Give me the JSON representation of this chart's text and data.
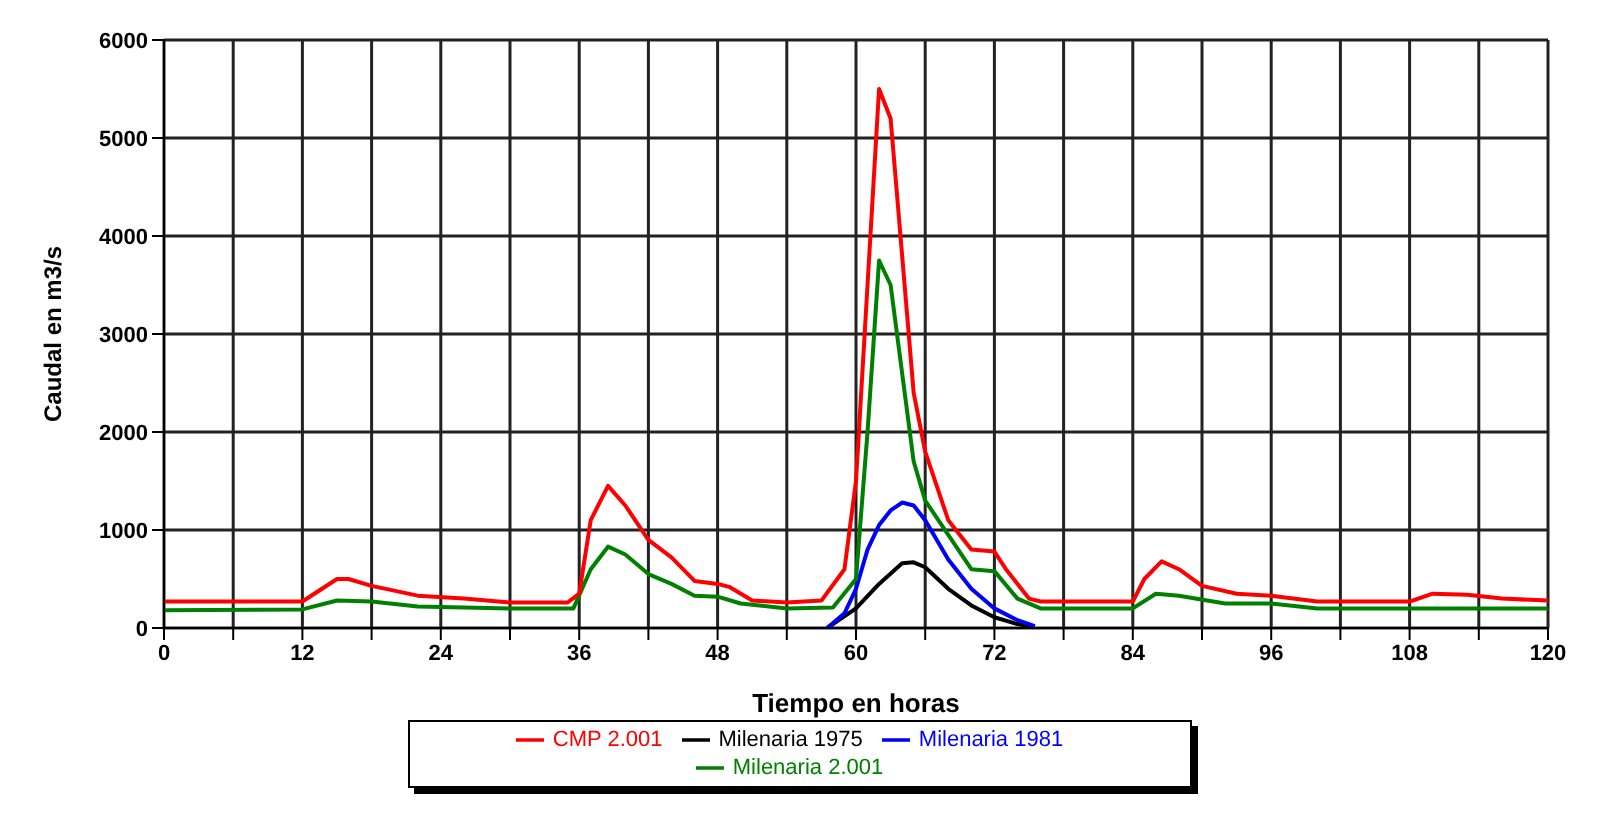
{
  "chart_data": {
    "type": "line",
    "xlabel": "Tiempo en horas",
    "ylabel": "Caudal en m3/s",
    "xlim": [
      0,
      120
    ],
    "xticks": [
      0,
      {
        "value": 6,
        "label": null
      },
      12,
      {
        "value": 18,
        "label": null
      },
      24,
      {
        "value": 30,
        "label": null
      },
      36,
      {
        "value": 42,
        "label": null
      },
      48,
      {
        "value": 54,
        "label": null
      },
      60,
      {
        "value": 66,
        "label": null
      },
      72,
      {
        "value": 78,
        "label": null
      },
      84,
      {
        "value": 90,
        "label": null
      },
      96,
      {
        "value": 102,
        "label": null
      },
      108,
      {
        "value": 114,
        "label": null
      },
      120
    ],
    "ylim": [
      0,
      6000
    ],
    "yticks": [
      0,
      1000,
      2000,
      3000,
      4000,
      5000,
      6000
    ],
    "grid": true,
    "legend": "bottom",
    "marker": "none",
    "line_style": "solid",
    "series": [
      {
        "name": "Milenaria 1975",
        "color": "#000000",
        "x": [
          57.5,
          60,
          62,
          64,
          65,
          66,
          68,
          70,
          72,
          74,
          75.5
        ],
        "values": [
          0,
          200,
          450,
          660,
          670,
          620,
          400,
          230,
          110,
          40,
          10
        ]
      },
      {
        "name": "Milenaria 1981",
        "color": "#0000ff",
        "x": [
          57.5,
          59,
          60,
          61,
          62,
          63,
          64,
          65,
          66,
          68,
          70,
          72,
          74,
          75.5
        ],
        "values": [
          0,
          150,
          400,
          800,
          1050,
          1200,
          1280,
          1250,
          1100,
          700,
          400,
          200,
          80,
          20
        ]
      },
      {
        "name": "Milenaria 2.001",
        "color": "#008000",
        "x": [
          0,
          12,
          15,
          18,
          22,
          30,
          35.5,
          37,
          38.5,
          40,
          42,
          44,
          46,
          48,
          50,
          54,
          58,
          60,
          61,
          62,
          63,
          64,
          65,
          66,
          68,
          70,
          72,
          74,
          76,
          84,
          86,
          88,
          92,
          96,
          100,
          120
        ],
        "values": [
          180,
          190,
          280,
          270,
          220,
          200,
          200,
          600,
          830,
          750,
          550,
          450,
          330,
          320,
          250,
          200,
          210,
          500,
          2000,
          3750,
          3500,
          2600,
          1700,
          1300,
          950,
          600,
          580,
          300,
          200,
          200,
          350,
          330,
          250,
          250,
          200,
          200
        ]
      },
      {
        "name": "CMP 2.001",
        "color": "#ff0000",
        "x": [
          0,
          12,
          15,
          16,
          18,
          22,
          26,
          30,
          35,
          36,
          37,
          38.5,
          40,
          42,
          44,
          46,
          48,
          49,
          51,
          54,
          57,
          59,
          60,
          61,
          62,
          63,
          64,
          65,
          66,
          68,
          70,
          72,
          73,
          75,
          76,
          84,
          85,
          86.5,
          88,
          90,
          93,
          96,
          100,
          108,
          110,
          113,
          116,
          120
        ],
        "values": [
          270,
          270,
          500,
          500,
          430,
          330,
          300,
          260,
          260,
          350,
          1100,
          1450,
          1250,
          900,
          720,
          480,
          450,
          420,
          280,
          260,
          280,
          600,
          1500,
          3500,
          5500,
          5200,
          3800,
          2400,
          1800,
          1100,
          800,
          780,
          600,
          300,
          270,
          270,
          500,
          680,
          600,
          430,
          350,
          330,
          270,
          270,
          350,
          340,
          300,
          280
        ]
      }
    ]
  }
}
